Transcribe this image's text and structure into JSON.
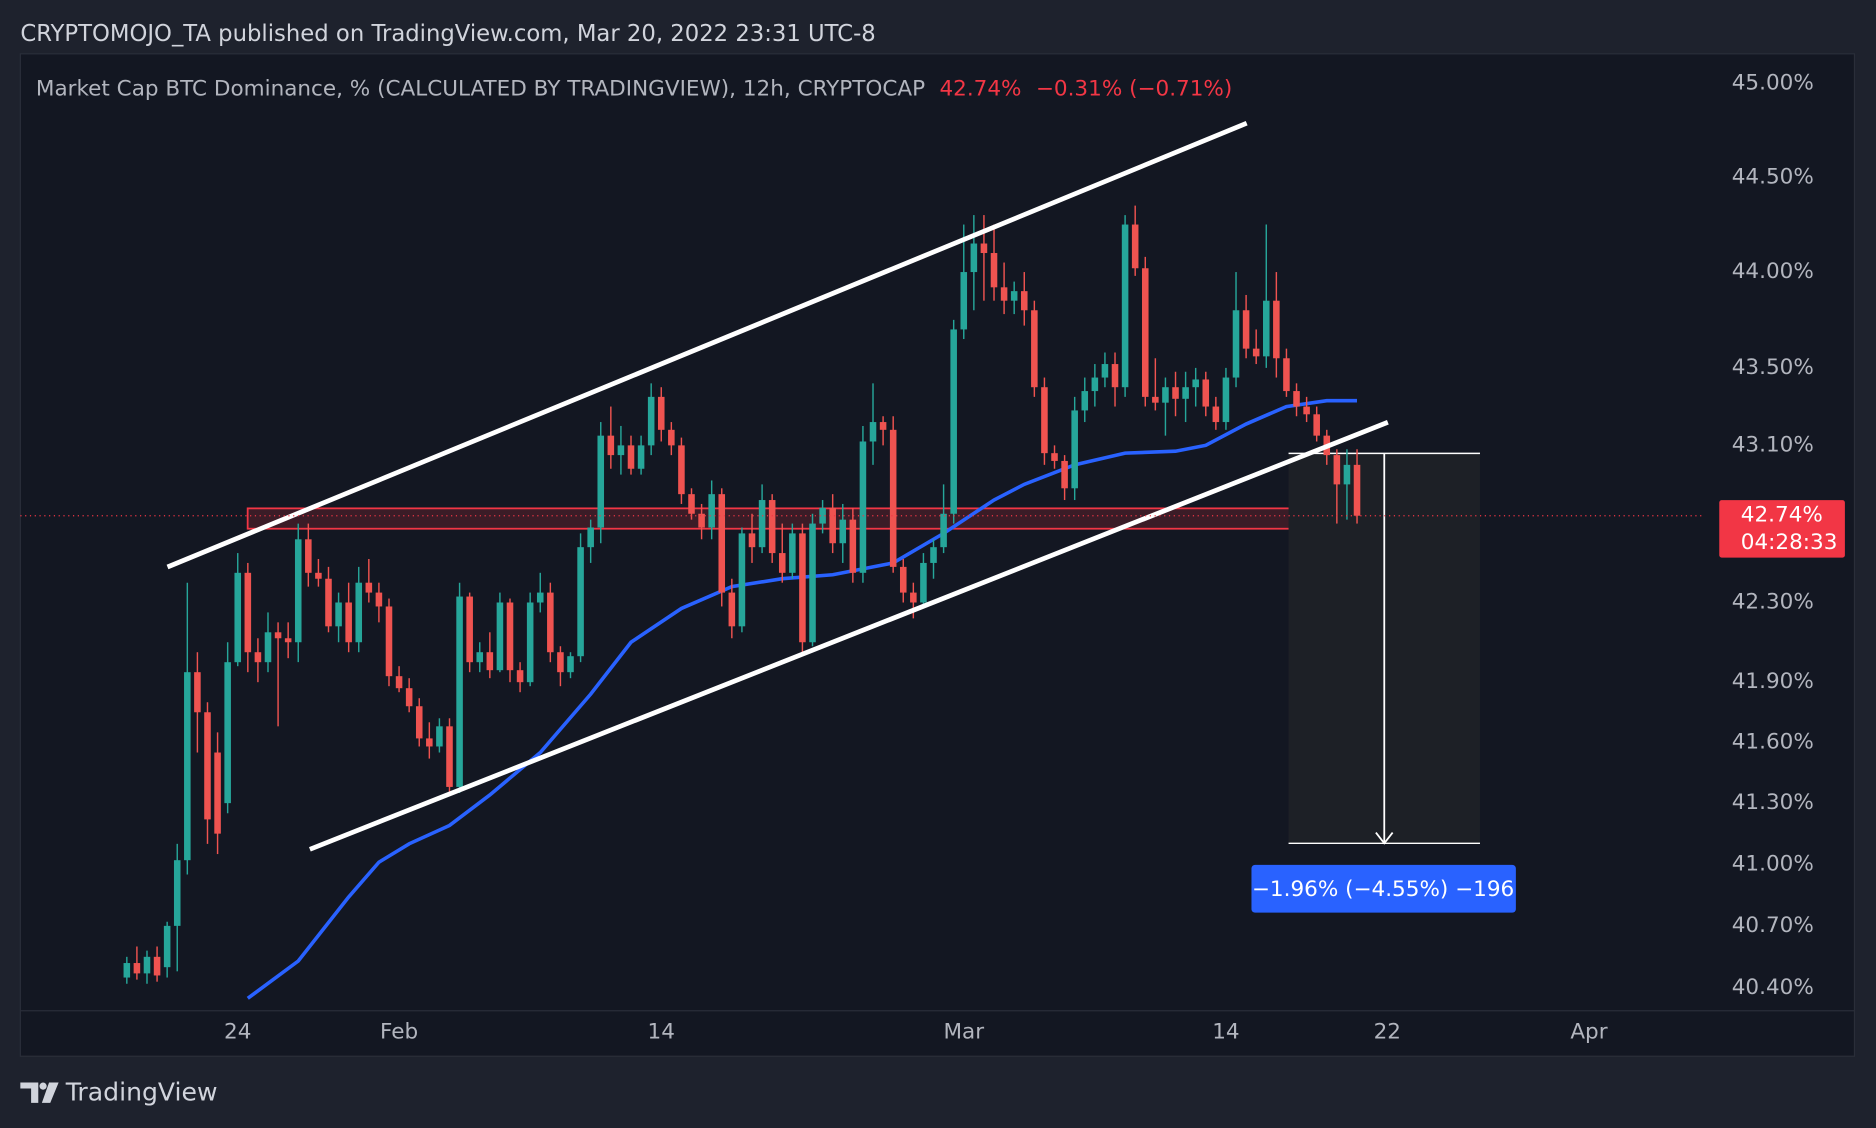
{
  "header": {
    "attribution": "CRYPTOMOJO_TA published on TradingView.com, Mar 20, 2022 23:31 UTC-8"
  },
  "footer": {
    "brand": "TradingView"
  },
  "chart_data": {
    "type": "candlestick",
    "title": "Market Cap BTC Dominance, % (CALCULATED BY TRADINGVIEW), 12h, CRYPTOCAP",
    "last_value_label": "42.74%",
    "change_label": "−0.31% (−0.71%)",
    "countdown": "04:28:33",
    "measure_label": "−1.96% (−4.55%) −196",
    "up_color": "#26a69a",
    "down_color": "#ef5350",
    "log": true,
    "grid": false,
    "ylim": [
      40.29,
      45.16
    ],
    "yticks": [
      {
        "value": 45,
        "label": "45.00%"
      },
      {
        "value": 44.5,
        "label": "44.50%"
      },
      {
        "value": 44,
        "label": "44.00%"
      },
      {
        "value": 43.5,
        "label": "43.50%"
      },
      {
        "value": 43.1,
        "label": "43.10%"
      },
      {
        "value": 42.3,
        "label": "42.30%"
      },
      {
        "value": 41.9,
        "label": "41.90%"
      },
      {
        "value": 41.6,
        "label": "41.60%"
      },
      {
        "value": 41.3,
        "label": "41.30%"
      },
      {
        "value": 41,
        "label": "41.00%"
      },
      {
        "value": 40.7,
        "label": "40.70%"
      },
      {
        "value": 40.4,
        "label": "40.40%"
      }
    ],
    "xlim": [
      -10.56,
      156.5
    ],
    "xticks": [
      {
        "value": 11,
        "label": "24"
      },
      {
        "value": 27,
        "label": "Feb"
      },
      {
        "value": 53,
        "label": "14"
      },
      {
        "value": 83,
        "label": "Mar"
      },
      {
        "value": 109,
        "label": "14"
      },
      {
        "value": 125,
        "label": "22"
      },
      {
        "value": 145,
        "label": "Apr"
      }
    ],
    "ohlc": [
      [
        40.45,
        40.55,
        40.42,
        40.52
      ],
      [
        40.52,
        40.6,
        40.44,
        40.47
      ],
      [
        40.47,
        40.58,
        40.42,
        40.55
      ],
      [
        40.55,
        40.6,
        40.43,
        40.46
      ],
      [
        40.5,
        40.72,
        40.45,
        40.7
      ],
      [
        40.7,
        41.1,
        40.48,
        41.02
      ],
      [
        41.02,
        42.4,
        40.95,
        41.95
      ],
      [
        41.95,
        42.05,
        41.55,
        41.75
      ],
      [
        41.75,
        41.8,
        41.1,
        41.22
      ],
      [
        41.55,
        41.65,
        41.05,
        41.15
      ],
      [
        41.3,
        42.1,
        41.25,
        42.0
      ],
      [
        42.0,
        42.55,
        41.98,
        42.45
      ],
      [
        42.45,
        42.5,
        41.95,
        42.05
      ],
      [
        42.05,
        42.12,
        41.9,
        42.0
      ],
      [
        42.0,
        42.25,
        41.95,
        42.15
      ],
      [
        42.15,
        42.2,
        41.68,
        42.12
      ],
      [
        42.12,
        42.2,
        42.02,
        42.1
      ],
      [
        42.1,
        42.7,
        42.0,
        42.62
      ],
      [
        42.62,
        42.7,
        42.38,
        42.45
      ],
      [
        42.45,
        42.52,
        42.38,
        42.42
      ],
      [
        42.42,
        42.48,
        42.15,
        42.18
      ],
      [
        42.18,
        42.35,
        42.1,
        42.3
      ],
      [
        42.3,
        42.4,
        42.05,
        42.1
      ],
      [
        42.1,
        42.48,
        42.05,
        42.4
      ],
      [
        42.4,
        42.52,
        42.3,
        42.35
      ],
      [
        42.35,
        42.4,
        42.2,
        42.28
      ],
      [
        42.28,
        42.32,
        41.88,
        41.93
      ],
      [
        41.93,
        41.98,
        41.85,
        41.87
      ],
      [
        41.87,
        41.92,
        41.75,
        41.78
      ],
      [
        41.78,
        41.82,
        41.58,
        41.62
      ],
      [
        41.62,
        41.7,
        41.52,
        41.58
      ],
      [
        41.58,
        41.72,
        41.55,
        41.68
      ],
      [
        41.68,
        41.72,
        41.35,
        41.38
      ],
      [
        41.38,
        42.4,
        41.35,
        42.33
      ],
      [
        42.33,
        42.35,
        41.95,
        42.0
      ],
      [
        42.0,
        42.1,
        41.95,
        42.05
      ],
      [
        42.05,
        42.15,
        41.92,
        41.96
      ],
      [
        41.96,
        42.35,
        41.95,
        42.3
      ],
      [
        42.3,
        42.32,
        41.9,
        41.96
      ],
      [
        41.96,
        42.0,
        41.85,
        41.9
      ],
      [
        41.9,
        42.35,
        41.88,
        42.3
      ],
      [
        42.3,
        42.45,
        42.25,
        42.35
      ],
      [
        42.35,
        42.4,
        42.0,
        42.05
      ],
      [
        42.05,
        42.08,
        41.88,
        41.95
      ],
      [
        41.95,
        42.05,
        41.92,
        42.03
      ],
      [
        42.03,
        42.65,
        42.0,
        42.58
      ],
      [
        42.58,
        42.72,
        42.5,
        42.68
      ],
      [
        42.68,
        43.22,
        42.6,
        43.15
      ],
      [
        43.15,
        43.3,
        42.98,
        43.05
      ],
      [
        43.05,
        43.2,
        42.95,
        43.1
      ],
      [
        43.1,
        43.15,
        42.95,
        42.98
      ],
      [
        42.98,
        43.15,
        42.95,
        43.1
      ],
      [
        43.1,
        43.42,
        43.05,
        43.35
      ],
      [
        43.35,
        43.4,
        43.12,
        43.18
      ],
      [
        43.18,
        43.22,
        43.05,
        43.1
      ],
      [
        43.1,
        43.14,
        42.8,
        42.85
      ],
      [
        42.85,
        42.88,
        42.72,
        42.75
      ],
      [
        42.75,
        42.8,
        42.62,
        42.68
      ],
      [
        42.68,
        42.92,
        42.62,
        42.85
      ],
      [
        42.85,
        42.88,
        42.28,
        42.35
      ],
      [
        42.35,
        42.42,
        42.12,
        42.18
      ],
      [
        42.18,
        42.68,
        42.15,
        42.65
      ],
      [
        42.65,
        42.75,
        42.5,
        42.58
      ],
      [
        42.58,
        42.9,
        42.55,
        42.82
      ],
      [
        42.82,
        42.85,
        42.5,
        42.55
      ],
      [
        42.55,
        42.7,
        42.4,
        42.45
      ],
      [
        42.45,
        42.7,
        42.42,
        42.65
      ],
      [
        42.65,
        42.7,
        42.05,
        42.1
      ],
      [
        42.1,
        42.75,
        42.08,
        42.7
      ],
      [
        42.7,
        42.82,
        42.65,
        42.78
      ],
      [
        42.78,
        42.85,
        42.55,
        42.6
      ],
      [
        42.6,
        42.8,
        42.5,
        42.72
      ],
      [
        42.72,
        42.78,
        42.4,
        42.45
      ],
      [
        42.45,
        43.2,
        42.4,
        43.12
      ],
      [
        43.12,
        43.42,
        43.0,
        43.22
      ],
      [
        43.22,
        43.25,
        43.1,
        43.18
      ],
      [
        43.18,
        43.25,
        42.45,
        42.48
      ],
      [
        42.48,
        42.52,
        42.3,
        42.35
      ],
      [
        42.35,
        42.4,
        42.22,
        42.3
      ],
      [
        42.3,
        42.55,
        42.28,
        42.5
      ],
      [
        42.5,
        42.62,
        42.42,
        42.58
      ],
      [
        42.58,
        42.9,
        42.55,
        42.75
      ],
      [
        42.75,
        43.75,
        42.7,
        43.7
      ],
      [
        43.7,
        44.25,
        43.65,
        44.0
      ],
      [
        44.0,
        44.3,
        43.8,
        44.15
      ],
      [
        44.15,
        44.3,
        43.85,
        44.1
      ],
      [
        44.1,
        44.25,
        43.85,
        43.92
      ],
      [
        43.92,
        44.05,
        43.78,
        43.85
      ],
      [
        43.85,
        43.95,
        43.78,
        43.9
      ],
      [
        43.9,
        44.0,
        43.72,
        43.8
      ],
      [
        43.8,
        43.85,
        43.35,
        43.4
      ],
      [
        43.4,
        43.45,
        43.0,
        43.06
      ],
      [
        43.06,
        43.1,
        42.98,
        43.02
      ],
      [
        43.02,
        43.05,
        42.82,
        42.88
      ],
      [
        42.88,
        43.35,
        42.82,
        43.28
      ],
      [
        43.28,
        43.45,
        43.22,
        43.38
      ],
      [
        43.38,
        43.52,
        43.3,
        43.45
      ],
      [
        43.45,
        43.58,
        43.4,
        43.52
      ],
      [
        43.52,
        43.58,
        43.3,
        43.4
      ],
      [
        43.4,
        44.3,
        43.35,
        44.25
      ],
      [
        44.25,
        44.35,
        43.98,
        44.02
      ],
      [
        44.02,
        44.08,
        43.3,
        43.35
      ],
      [
        43.35,
        43.55,
        43.28,
        43.32
      ],
      [
        43.32,
        43.45,
        43.15,
        43.4
      ],
      [
        43.4,
        43.48,
        43.25,
        43.34
      ],
      [
        43.34,
        43.48,
        43.22,
        43.4
      ],
      [
        43.4,
        43.5,
        43.3,
        43.44
      ],
      [
        43.44,
        43.48,
        43.25,
        43.3
      ],
      [
        43.3,
        43.35,
        43.18,
        43.22
      ],
      [
        43.22,
        43.5,
        43.18,
        43.45
      ],
      [
        43.45,
        44.0,
        43.4,
        43.8
      ],
      [
        43.8,
        43.88,
        43.55,
        43.6
      ],
      [
        43.6,
        43.7,
        43.52,
        43.56
      ],
      [
        43.56,
        44.25,
        43.5,
        43.85
      ],
      [
        43.85,
        44.0,
        43.45,
        43.55
      ],
      [
        43.55,
        43.6,
        43.35,
        43.38
      ],
      [
        43.38,
        43.42,
        43.25,
        43.3
      ],
      [
        43.3,
        43.35,
        43.22,
        43.26
      ],
      [
        43.26,
        43.3,
        43.12,
        43.15
      ],
      [
        43.15,
        43.18,
        43.0,
        43.05
      ],
      [
        43.05,
        43.08,
        42.7,
        42.9
      ],
      [
        42.9,
        43.08,
        42.72,
        43.0
      ],
      [
        43.0,
        43.08,
        42.7,
        42.74
      ]
    ],
    "moving_average": {
      "color": "#2962ff",
      "x": [
        12,
        17,
        22,
        25,
        28,
        32,
        36,
        41,
        46,
        50,
        55,
        60,
        65,
        70,
        76,
        81,
        86,
        89,
        94,
        99,
        104,
        107,
        111,
        115,
        119,
        122
      ],
      "values": [
        40.35,
        40.53,
        40.84,
        41.01,
        41.1,
        41.19,
        41.34,
        41.55,
        41.84,
        42.1,
        42.27,
        42.38,
        42.42,
        42.44,
        42.5,
        42.65,
        42.82,
        42.9,
        43.0,
        43.06,
        43.07,
        43.1,
        43.21,
        43.3,
        43.33,
        43.33
      ]
    }
  }
}
